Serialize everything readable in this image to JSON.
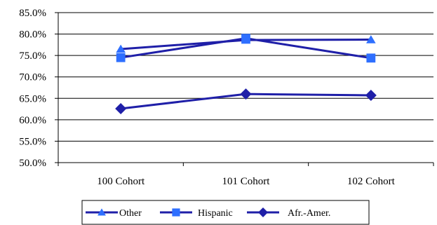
{
  "chart_data": {
    "type": "line",
    "categories": [
      "100 Cohort",
      "101 Cohort",
      "102 Cohort"
    ],
    "series": [
      {
        "name": "Other",
        "values": [
          76.5,
          78.6,
          78.7
        ],
        "color": "#1f1fa8",
        "marker": "triangle"
      },
      {
        "name": "Hispanic",
        "values": [
          74.5,
          79.0,
          74.4
        ],
        "color": "#1f1fa8",
        "marker": "square"
      },
      {
        "name": "Afr.-Amer.",
        "values": [
          62.6,
          66.0,
          65.7
        ],
        "color": "#1f1fa8",
        "marker": "diamond"
      }
    ],
    "marker_color": "#2e6fff",
    "ylim": [
      50,
      85
    ],
    "yticks": [
      "50.0%",
      "55.0%",
      "60.0%",
      "65.0%",
      "70.0%",
      "75.0%",
      "80.0%",
      "85.0%"
    ],
    "ytick_values": [
      50,
      55,
      60,
      65,
      70,
      75,
      80,
      85
    ],
    "grid": true,
    "legend_position": "bottom"
  }
}
